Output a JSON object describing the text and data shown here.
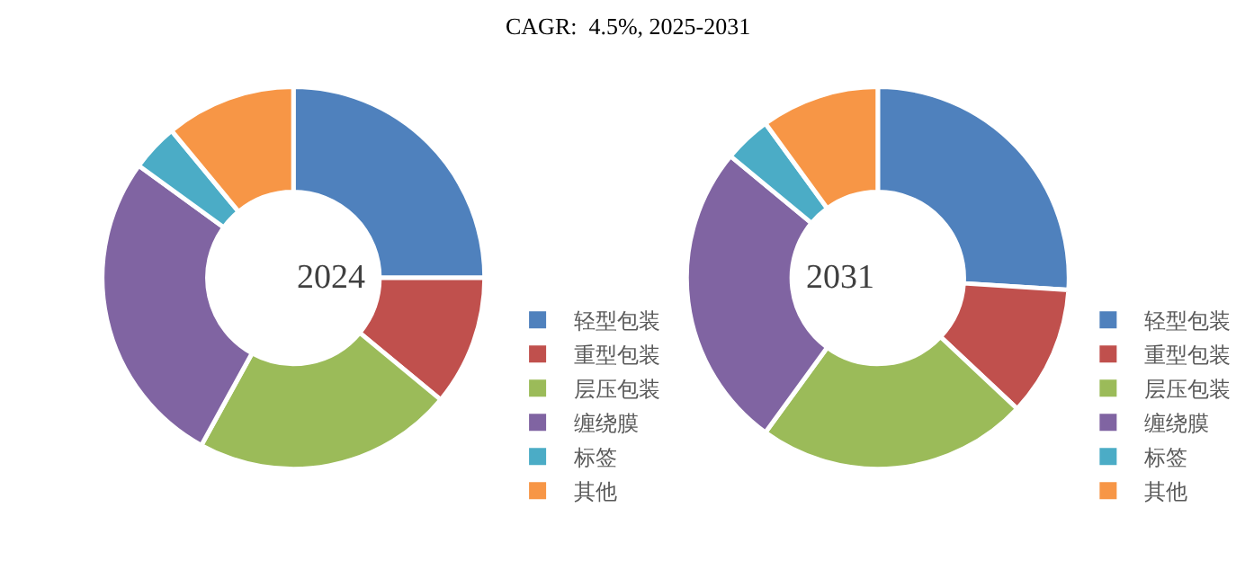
{
  "chart_data": [
    {
      "type": "donut",
      "title": "2024",
      "annotations": [
        "CAGR:  4.5%, 2025-2031"
      ],
      "categories": [
        "轻型包装",
        "重型包装",
        "层压包装",
        "缠绕膜",
        "标签",
        "其他"
      ],
      "values": [
        25,
        11,
        22,
        27,
        4,
        11
      ],
      "colors": [
        "#4f81bd",
        "#c0504d",
        "#9bbb59",
        "#8064a2",
        "#4bacc6",
        "#f79646"
      ],
      "legend": "bottom"
    },
    {
      "type": "donut",
      "title": "2031",
      "categories": [
        "轻型包装",
        "重型包装",
        "层压包装",
        "缠绕膜",
        "标签",
        "其他"
      ],
      "values": [
        26,
        11,
        23,
        26,
        4,
        10
      ],
      "colors": [
        "#4f81bd",
        "#c0504d",
        "#9bbb59",
        "#8064a2",
        "#4bacc6",
        "#f79646"
      ],
      "legend": "bottom"
    }
  ]
}
